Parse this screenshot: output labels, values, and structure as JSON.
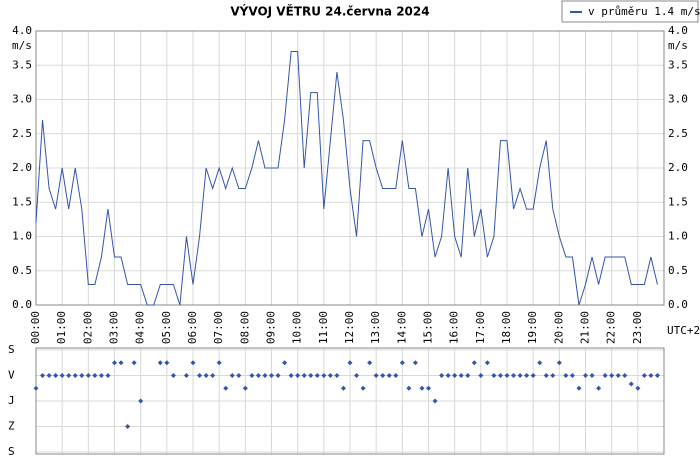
{
  "chart_data": [
    {
      "type": "line",
      "title": "VÝVOJ VĚTRU  24.června 2024",
      "y_label": "m/s",
      "y2_label": "m/s",
      "x_note": "UTC+2",
      "x": [
        0,
        0.25,
        0.5,
        0.75,
        1,
        1.25,
        1.5,
        1.75,
        2,
        2.25,
        2.5,
        2.75,
        3,
        3.25,
        3.5,
        3.75,
        4,
        4.25,
        4.5,
        4.75,
        5,
        5.25,
        5.5,
        5.75,
        6,
        6.25,
        6.5,
        6.75,
        7,
        7.25,
        7.5,
        7.75,
        8,
        8.25,
        8.5,
        8.75,
        9,
        9.25,
        9.5,
        9.75,
        10,
        10.25,
        10.5,
        10.75,
        11,
        11.25,
        11.5,
        11.75,
        12,
        12.25,
        12.5,
        12.75,
        13,
        13.25,
        13.5,
        13.75,
        14,
        14.25,
        14.5,
        14.75,
        15,
        15.25,
        15.5,
        15.75,
        16,
        16.25,
        16.5,
        16.75,
        17,
        17.25,
        17.5,
        17.75,
        18,
        18.25,
        18.5,
        18.75,
        19,
        19.25,
        19.5,
        19.75,
        20,
        20.25,
        20.5,
        20.75,
        21,
        21.25,
        21.5,
        21.75,
        22,
        22.25,
        22.5,
        22.75,
        23,
        23.25,
        23.5,
        23.75
      ],
      "series": [
        {
          "name": "v průměru 1.4 m/s",
          "color": "#3355aa",
          "values": [
            1.2,
            2.7,
            1.7,
            1.4,
            2.0,
            1.4,
            2.0,
            1.4,
            0.3,
            0.3,
            0.7,
            1.4,
            0.7,
            0.7,
            0.3,
            0.3,
            0.3,
            0.0,
            0.0,
            0.3,
            0.3,
            0.3,
            0.0,
            1.0,
            0.3,
            1.0,
            2.0,
            1.7,
            2.0,
            1.7,
            2.0,
            1.7,
            1.7,
            2.0,
            2.4,
            2.0,
            2.0,
            2.0,
            2.7,
            3.7,
            3.7,
            2.0,
            3.1,
            3.1,
            1.4,
            2.4,
            3.4,
            2.7,
            1.7,
            1.0,
            2.4,
            2.4,
            2.0,
            1.7,
            1.7,
            1.7,
            2.4,
            1.7,
            1.7,
            1.0,
            1.4,
            0.7,
            1.0,
            2.0,
            1.0,
            0.7,
            2.0,
            1.0,
            1.4,
            0.7,
            1.0,
            2.4,
            2.4,
            1.4,
            1.7,
            1.4,
            1.4,
            2.0,
            2.4,
            1.4,
            1.0,
            0.7,
            0.7,
            0.0,
            0.3,
            0.7,
            0.3,
            0.7,
            0.7,
            0.7,
            0.7,
            0.3,
            0.3,
            0.3,
            0.7,
            0.3
          ]
        }
      ],
      "xlim": [
        0,
        24
      ],
      "xticks": [
        {
          "value": 0,
          "label": "00:00"
        },
        {
          "value": 1,
          "label": "01:00"
        },
        {
          "value": 2,
          "label": "02:00"
        },
        {
          "value": 3,
          "label": "03:00"
        },
        {
          "value": 4,
          "label": "04:00"
        },
        {
          "value": 5,
          "label": "05:00"
        },
        {
          "value": 6,
          "label": "06:00"
        },
        {
          "value": 7,
          "label": "07:00"
        },
        {
          "value": 8,
          "label": "08:00"
        },
        {
          "value": 9,
          "label": "09:00"
        },
        {
          "value": 10,
          "label": "10:00"
        },
        {
          "value": 11,
          "label": "11:00"
        },
        {
          "value": 12,
          "label": "12:00"
        },
        {
          "value": 13,
          "label": "13:00"
        },
        {
          "value": 14,
          "label": "14:00"
        },
        {
          "value": 15,
          "label": "15:00"
        },
        {
          "value": 16,
          "label": "16:00"
        },
        {
          "value": 17,
          "label": "17:00"
        },
        {
          "value": 18,
          "label": "18:00"
        },
        {
          "value": 19,
          "label": "19:00"
        },
        {
          "value": 20,
          "label": "20:00"
        },
        {
          "value": 21,
          "label": "21:00"
        },
        {
          "value": 22,
          "label": "22:00"
        },
        {
          "value": 23,
          "label": "23:00"
        }
      ],
      "ylim": [
        0,
        4
      ],
      "yticks": [
        {
          "value": 0,
          "label": "0.0"
        },
        0.5,
        {
          "value": 1,
          "label": "1.0"
        },
        1.5,
        {
          "value": 2,
          "label": "2.0"
        },
        2.5,
        {
          "value": 3,
          "label": "3.0"
        },
        3.5,
        {
          "value": 4,
          "label": "4.0"
        }
      ],
      "grid": true,
      "legend": "top-right"
    },
    {
      "type": "scatter",
      "color": "#3355aa",
      "x": [
        0,
        0.25,
        0.5,
        0.75,
        1,
        1.25,
        1.5,
        1.75,
        2,
        2.25,
        2.5,
        2.75,
        3,
        3.25,
        3.5,
        3.75,
        4,
        4.25,
        4.5,
        4.75,
        5,
        5.25,
        5.5,
        5.75,
        6,
        6.25,
        6.5,
        6.75,
        7,
        7.25,
        7.5,
        7.75,
        8,
        8.25,
        8.5,
        8.75,
        9,
        9.25,
        9.5,
        9.75,
        10,
        10.25,
        10.5,
        10.75,
        11,
        11.25,
        11.5,
        11.75,
        12,
        12.25,
        12.5,
        12.75,
        13,
        13.25,
        13.5,
        13.75,
        14,
        14.25,
        14.5,
        14.75,
        15,
        15.25,
        15.5,
        15.75,
        16,
        16.25,
        16.5,
        16.75,
        17,
        17.25,
        17.5,
        17.75,
        18,
        18.25,
        18.5,
        18.75,
        19,
        19.25,
        19.5,
        19.75,
        20,
        20.25,
        20.5,
        20.75,
        21,
        21.25,
        21.5,
        21.75,
        22,
        22.25,
        22.5,
        22.75,
        23,
        23.25,
        23.5,
        23.75
      ],
      "values": [
        135,
        90,
        90,
        90,
        90,
        90,
        90,
        90,
        90,
        90,
        90,
        90,
        45,
        45,
        270,
        45,
        180,
        null,
        null,
        45,
        45,
        90,
        null,
        90,
        45,
        90,
        90,
        90,
        45,
        135,
        90,
        90,
        135,
        90,
        90,
        90,
        90,
        90,
        45,
        90,
        90,
        90,
        90,
        90,
        90,
        90,
        90,
        135,
        45,
        90,
        135,
        45,
        90,
        90,
        90,
        90,
        45,
        135,
        45,
        135,
        135,
        180,
        90,
        90,
        90,
        90,
        90,
        45,
        90,
        45,
        90,
        90,
        90,
        90,
        90,
        90,
        90,
        45,
        90,
        90,
        45,
        90,
        90,
        135,
        90,
        90,
        135,
        90,
        90,
        90,
        90,
        120,
        135,
        90,
        90,
        90
      ],
      "xlim": [
        0,
        24
      ],
      "ylim": [
        0,
        360
      ],
      "yticks": [
        {
          "value": 0,
          "label": "S"
        },
        {
          "value": 90,
          "label": "V"
        },
        {
          "value": 180,
          "label": "J"
        },
        {
          "value": 270,
          "label": "Z"
        },
        {
          "value": 360,
          "label": "S"
        }
      ],
      "grid": true
    }
  ]
}
